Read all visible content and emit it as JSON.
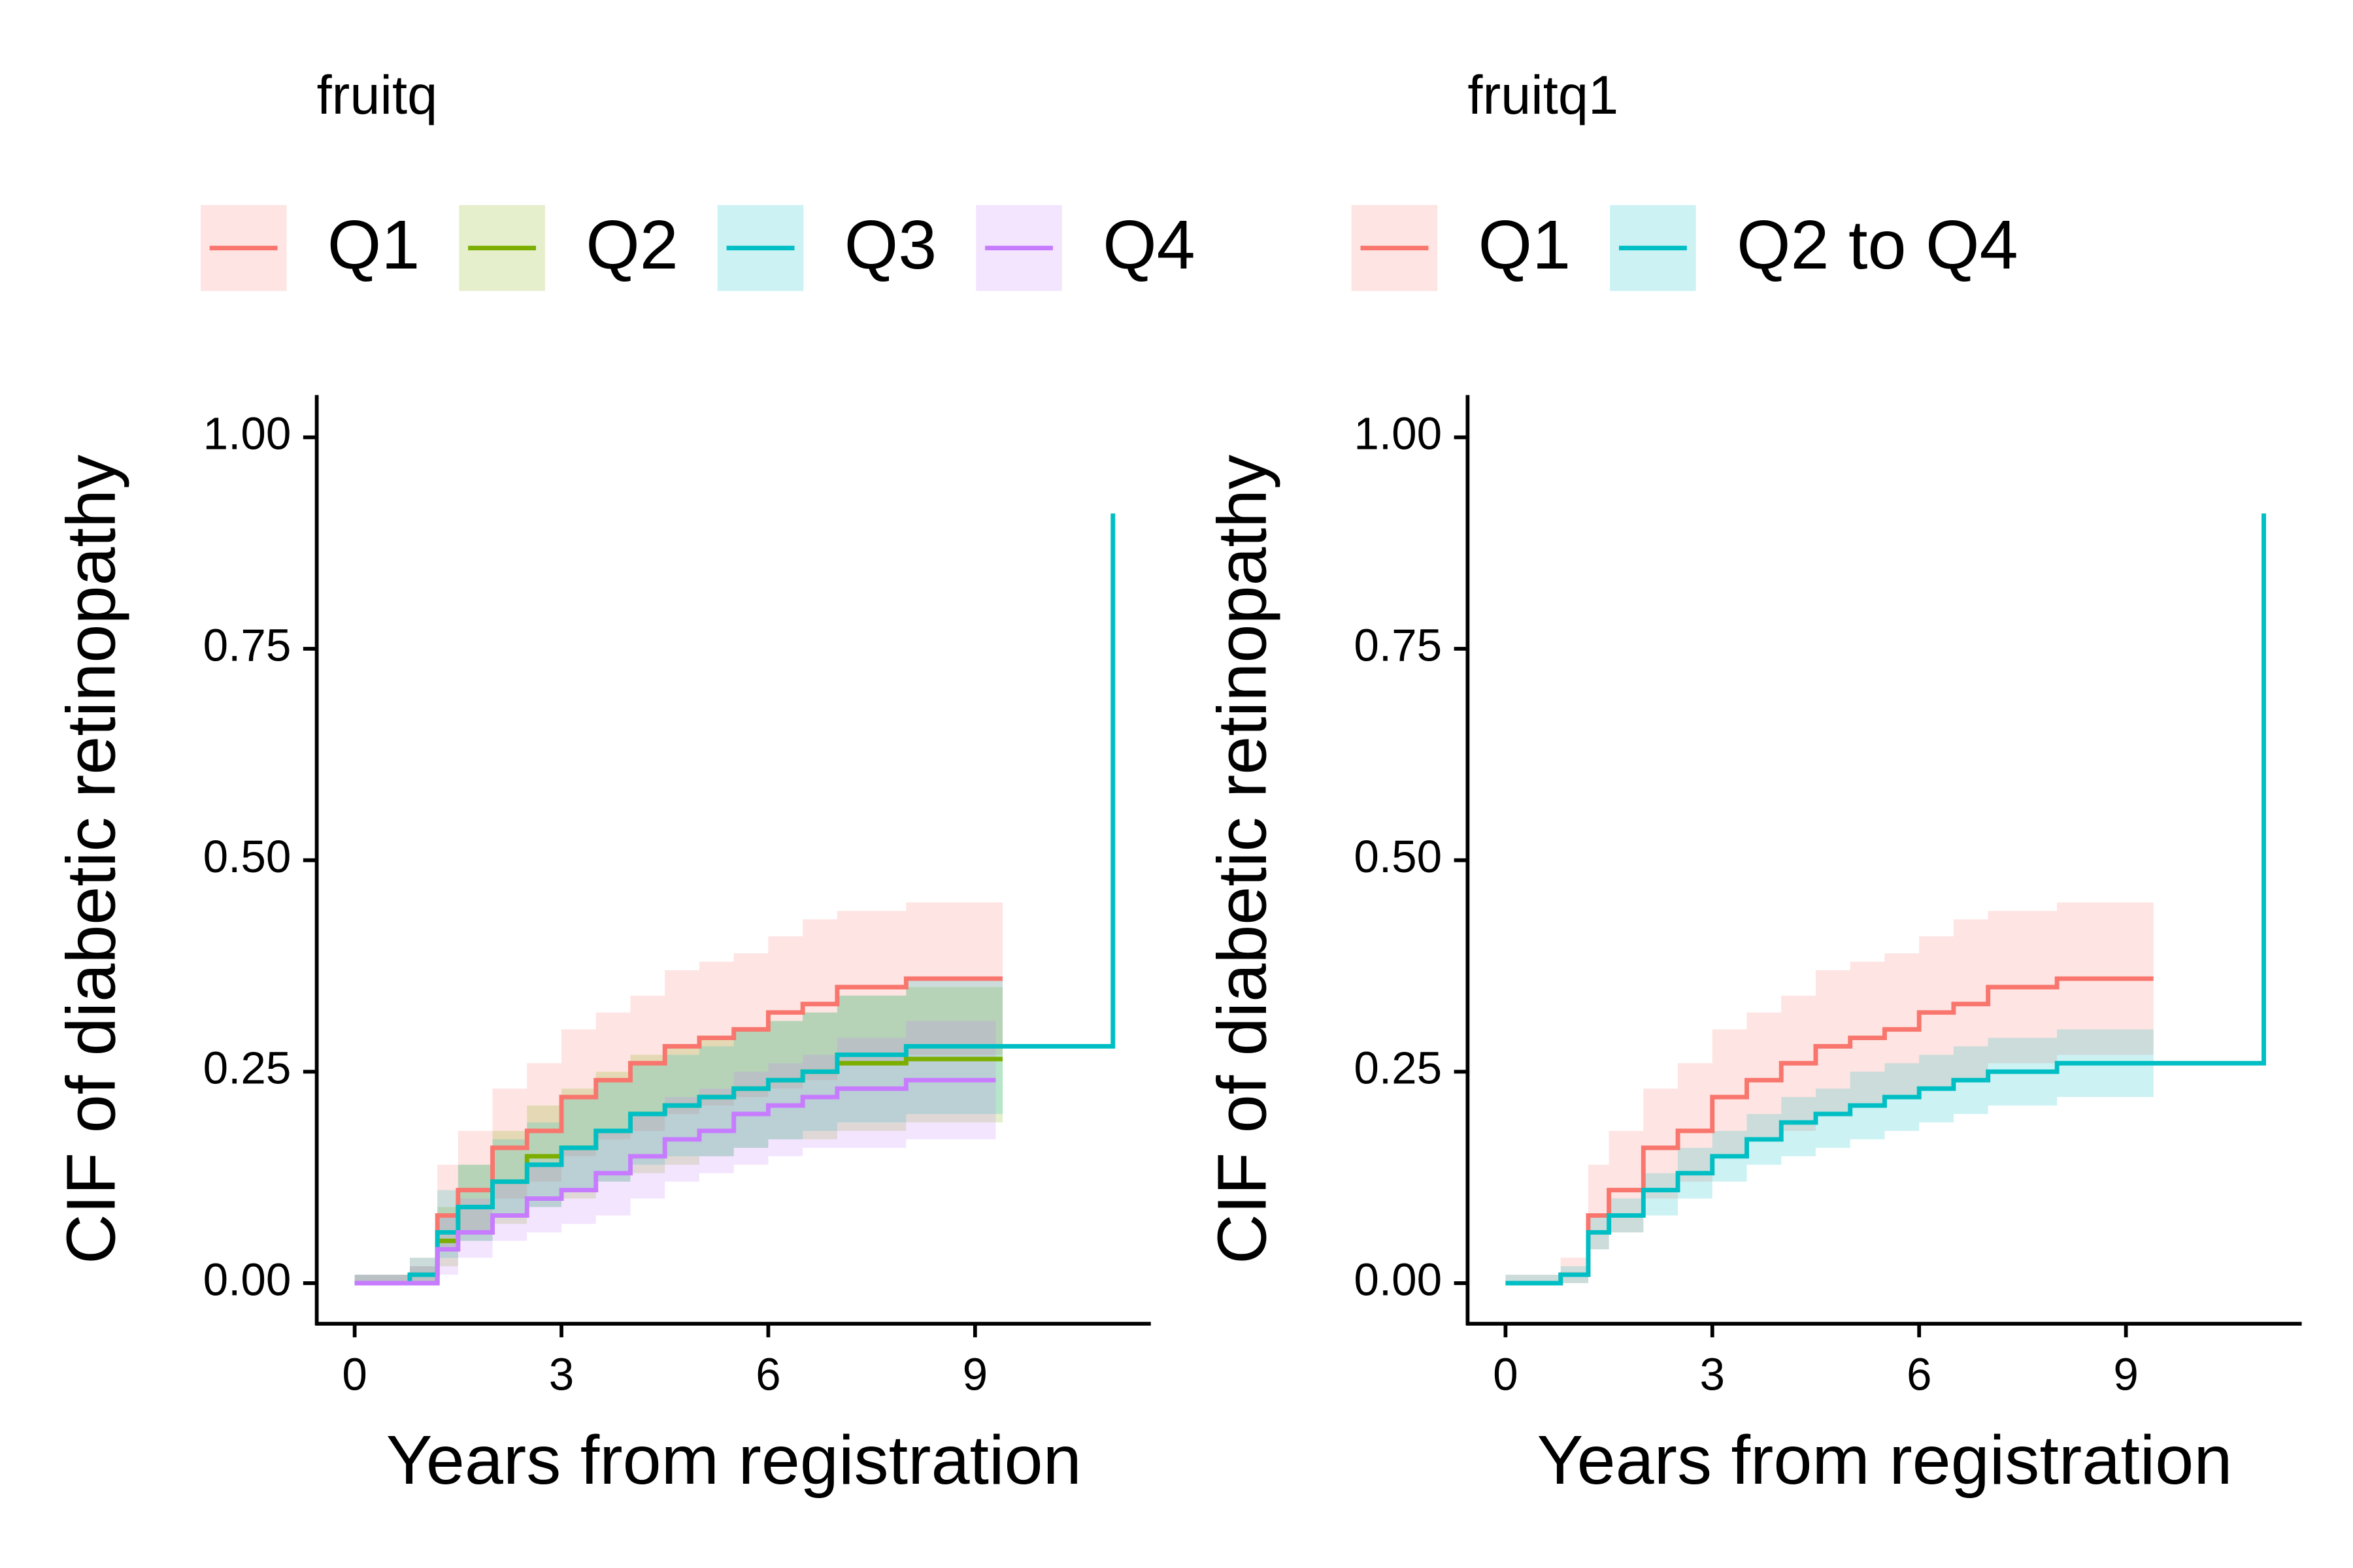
{
  "chart_data": [
    {
      "type": "step",
      "legend_title": "fruitq",
      "xlabel": "Years from registration",
      "ylabel": "CIF of diabetic retinopathy",
      "xlim": [
        -0.55,
        11.55
      ],
      "ylim": [
        -0.048,
        1.05
      ],
      "xticks": [
        0,
        3,
        6,
        9
      ],
      "yticks": [
        {
          "value": 0,
          "label": "0.00"
        },
        {
          "value": 0.25,
          "label": "0.25"
        },
        {
          "value": 0.5,
          "label": "0.50"
        },
        {
          "value": 0.75,
          "label": "0.75"
        },
        {
          "value": 1,
          "label": "1.00"
        }
      ],
      "legend_position": "top",
      "series": [
        {
          "name": "Q1",
          "color": "#F8766D",
          "x": [
            0,
            0.8,
            1.2,
            1.5,
            2,
            2.5,
            3,
            3.5,
            4,
            4.5,
            5,
            5.5,
            6,
            6.5,
            7,
            8,
            9.4
          ],
          "values": [
            0,
            0.01,
            0.08,
            0.11,
            0.16,
            0.18,
            0.22,
            0.24,
            0.26,
            0.28,
            0.29,
            0.3,
            0.32,
            0.33,
            0.35,
            0.36,
            0.36
          ],
          "lower": [
            0,
            0,
            0.04,
            0.06,
            0.1,
            0.12,
            0.15,
            0.17,
            0.18,
            0.2,
            0.21,
            0.22,
            0.23,
            0.24,
            0.26,
            0.27,
            0.27
          ],
          "upper": [
            0.01,
            0.03,
            0.14,
            0.18,
            0.23,
            0.26,
            0.3,
            0.32,
            0.34,
            0.37,
            0.38,
            0.39,
            0.41,
            0.43,
            0.44,
            0.45,
            0.46
          ]
        },
        {
          "name": "Q2",
          "color": "#7CAE00",
          "x": [
            0,
            0.8,
            1.2,
            1.5,
            2,
            2.5,
            3,
            3.5,
            4,
            4.5,
            5,
            5.5,
            6,
            6.5,
            7,
            8,
            9.4
          ],
          "values": [
            0,
            0,
            0.05,
            0.09,
            0.12,
            0.15,
            0.16,
            0.18,
            0.2,
            0.21,
            0.22,
            0.23,
            0.24,
            0.25,
            0.26,
            0.265,
            0.265
          ],
          "lower": [
            0,
            0,
            0.02,
            0.05,
            0.07,
            0.09,
            0.1,
            0.12,
            0.13,
            0.14,
            0.15,
            0.16,
            0.17,
            0.17,
            0.18,
            0.19,
            0.19
          ],
          "upper": [
            0.01,
            0.02,
            0.09,
            0.14,
            0.18,
            0.21,
            0.23,
            0.25,
            0.27,
            0.28,
            0.29,
            0.3,
            0.31,
            0.32,
            0.34,
            0.35,
            0.35
          ]
        },
        {
          "name": "Q3",
          "color": "#00BFC4",
          "x": [
            0,
            0.8,
            1.2,
            1.5,
            2,
            2.5,
            3,
            3.5,
            4,
            4.5,
            5,
            5.5,
            6,
            6.5,
            7,
            8,
            9.4,
            11,
            11
          ],
          "values": [
            0,
            0.01,
            0.06,
            0.09,
            0.12,
            0.14,
            0.16,
            0.18,
            0.2,
            0.21,
            0.22,
            0.23,
            0.24,
            0.25,
            0.27,
            0.28,
            0.28,
            0.28,
            0.91
          ],
          "lower": [
            0,
            0,
            0.03,
            0.05,
            0.08,
            0.09,
            0.11,
            0.12,
            0.14,
            0.15,
            0.15,
            0.16,
            0.17,
            0.18,
            0.19,
            0.2,
            0.2,
            null,
            null
          ],
          "upper": [
            0.01,
            0.03,
            0.11,
            0.14,
            0.17,
            0.19,
            0.22,
            0.24,
            0.26,
            0.27,
            0.28,
            0.3,
            0.31,
            0.32,
            0.34,
            0.36,
            0.36,
            null,
            null
          ]
        },
        {
          "name": "Q4",
          "color": "#C77CFF",
          "x": [
            0,
            0.8,
            1.2,
            1.5,
            2,
            2.5,
            3,
            3.5,
            4,
            4.5,
            5,
            5.5,
            6,
            6.5,
            7,
            8,
            9.3
          ],
          "values": [
            0,
            0,
            0.04,
            0.06,
            0.08,
            0.1,
            0.11,
            0.13,
            0.15,
            0.17,
            0.18,
            0.2,
            0.21,
            0.22,
            0.23,
            0.24,
            0.24
          ],
          "lower": [
            0,
            0,
            0.01,
            0.03,
            0.05,
            0.06,
            0.07,
            0.08,
            0.1,
            0.12,
            0.13,
            0.14,
            0.15,
            0.16,
            0.16,
            0.17,
            0.17
          ],
          "upper": [
            0.01,
            0.02,
            0.08,
            0.1,
            0.12,
            0.14,
            0.16,
            0.18,
            0.2,
            0.22,
            0.23,
            0.25,
            0.26,
            0.27,
            0.29,
            0.31,
            0.32
          ]
        }
      ]
    },
    {
      "type": "step",
      "legend_title": "fruitq1",
      "xlabel": "Years from registration",
      "ylabel": "CIF of diabetic retinopathy",
      "xlim": [
        -0.55,
        11.55
      ],
      "ylim": [
        -0.048,
        1.05
      ],
      "xticks": [
        0,
        3,
        6,
        9
      ],
      "yticks": [
        {
          "value": 0,
          "label": "0.00"
        },
        {
          "value": 0.25,
          "label": "0.25"
        },
        {
          "value": 0.5,
          "label": "0.50"
        },
        {
          "value": 0.75,
          "label": "0.75"
        },
        {
          "value": 1,
          "label": "1.00"
        }
      ],
      "legend_position": "top",
      "series": [
        {
          "name": "Q1",
          "color": "#F8766D",
          "x": [
            0,
            0.8,
            1.2,
            1.5,
            2,
            2.5,
            3,
            3.5,
            4,
            4.5,
            5,
            5.5,
            6,
            6.5,
            7,
            8,
            9.4
          ],
          "values": [
            0,
            0.01,
            0.08,
            0.11,
            0.16,
            0.18,
            0.22,
            0.24,
            0.26,
            0.28,
            0.29,
            0.3,
            0.32,
            0.33,
            0.35,
            0.36,
            0.36
          ],
          "lower": [
            0,
            0,
            0.04,
            0.06,
            0.1,
            0.12,
            0.15,
            0.17,
            0.18,
            0.2,
            0.21,
            0.22,
            0.23,
            0.24,
            0.26,
            0.27,
            0.27
          ],
          "upper": [
            0.01,
            0.03,
            0.14,
            0.18,
            0.23,
            0.26,
            0.3,
            0.32,
            0.34,
            0.37,
            0.38,
            0.39,
            0.41,
            0.43,
            0.44,
            0.45,
            0.46
          ]
        },
        {
          "name": "Q2 to Q4",
          "color": "#00BFC4",
          "x": [
            0,
            0.8,
            1.2,
            1.5,
            2,
            2.5,
            3,
            3.5,
            4,
            4.5,
            5,
            5.5,
            6,
            6.5,
            7,
            8,
            9.4,
            11,
            11
          ],
          "values": [
            0,
            0.01,
            0.06,
            0.08,
            0.11,
            0.13,
            0.15,
            0.17,
            0.19,
            0.2,
            0.21,
            0.22,
            0.23,
            0.24,
            0.25,
            0.26,
            0.26,
            0.26,
            0.91
          ],
          "lower": [
            0,
            0,
            0.04,
            0.06,
            0.08,
            0.1,
            0.12,
            0.14,
            0.15,
            0.16,
            0.17,
            0.18,
            0.19,
            0.2,
            0.21,
            0.22,
            0.22,
            null,
            null
          ],
          "upper": [
            0.01,
            0.02,
            0.08,
            0.1,
            0.13,
            0.16,
            0.18,
            0.2,
            0.22,
            0.23,
            0.25,
            0.26,
            0.27,
            0.28,
            0.29,
            0.3,
            0.31,
            null,
            null
          ]
        }
      ]
    }
  ]
}
